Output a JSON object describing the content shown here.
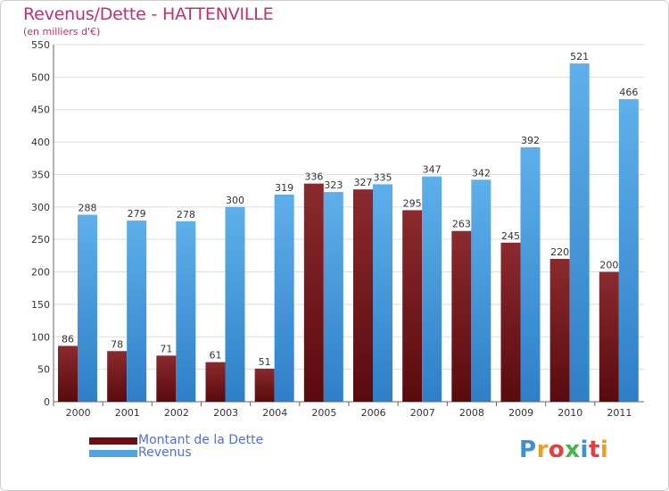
{
  "chart_data": {
    "type": "bar",
    "title": "Revenus/Dette - HATTENVILLE",
    "subtitle": "(en milliers d'€)",
    "categories": [
      "2000",
      "2001",
      "2002",
      "2003",
      "2004",
      "2005",
      "2006",
      "2007",
      "2008",
      "2009",
      "2010",
      "2011"
    ],
    "series": [
      {
        "name": "Montant de la Dette",
        "color": "#7a1a1f",
        "values": [
          86,
          78,
          71,
          61,
          51,
          336,
          327,
          295,
          263,
          245,
          220,
          200
        ]
      },
      {
        "name": "Revenus",
        "color": "#4ea3e3",
        "values": [
          288,
          279,
          278,
          300,
          319,
          323,
          335,
          347,
          342,
          392,
          521,
          466
        ]
      }
    ],
    "ylim": [
      0,
      550
    ],
    "yticks": [
      0,
      50,
      100,
      150,
      200,
      250,
      300,
      350,
      400,
      450,
      500,
      550
    ],
    "grid": true,
    "legend_position": "bottom-left"
  },
  "logo": {
    "text": "Proxiti",
    "colors": [
      "#3d8fd8",
      "#e8a020",
      "#e04040",
      "#4bb34b",
      "#3d8fd8",
      "#e04040",
      "#e8a020"
    ]
  }
}
